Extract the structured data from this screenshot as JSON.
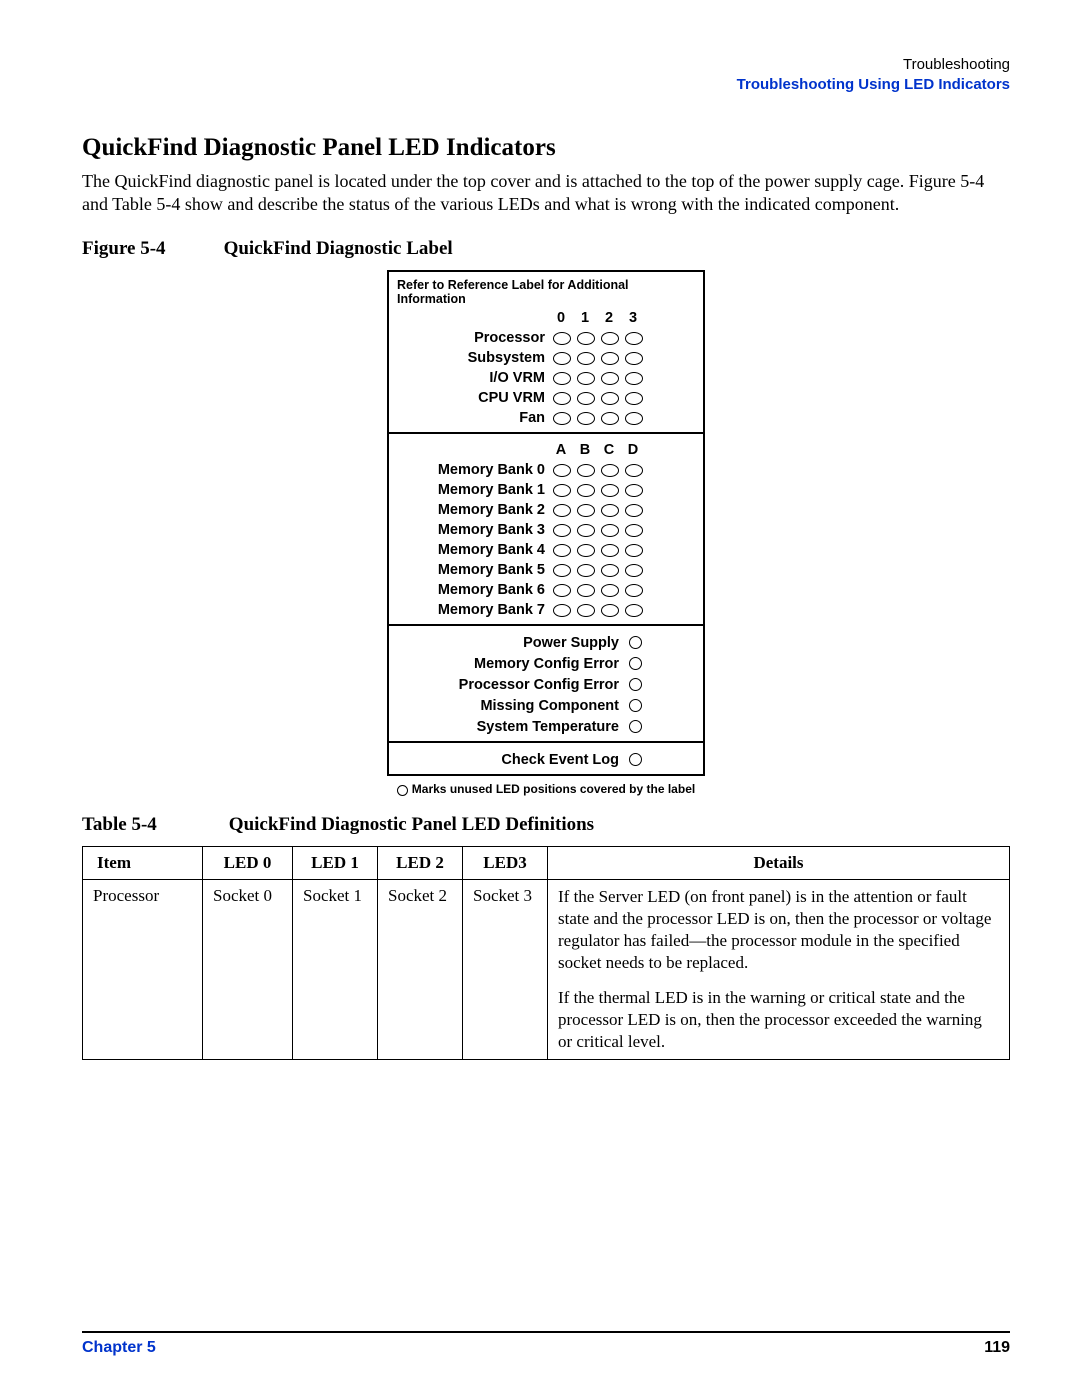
{
  "header": {
    "section": "Troubleshooting",
    "subsection": "Troubleshooting Using LED Indicators"
  },
  "section_title": "QuickFind Diagnostic Panel LED Indicators",
  "body_text": "The QuickFind diagnostic panel is located under the top cover and is attached to the top of the power supply cage. Figure 5-4 and Table 5-4 show and describe the status of the various LEDs and what is wrong with the indicated component.",
  "figure": {
    "label": "Figure 5-4",
    "title": "QuickFind Diagnostic Label"
  },
  "diagram": {
    "note": "Refer to Reference Label for Additional Information",
    "cols_num": [
      "0",
      "1",
      "2",
      "3"
    ],
    "cols_alpha": [
      "A",
      "B",
      "C",
      "D"
    ],
    "group1": [
      "Processor",
      "Subsystem",
      "I/O VRM",
      "CPU VRM",
      "Fan"
    ],
    "group2": [
      "Memory Bank 0",
      "Memory Bank 1",
      "Memory Bank 2",
      "Memory Bank 3",
      "Memory Bank 4",
      "Memory Bank 5",
      "Memory Bank 6",
      "Memory Bank 7"
    ],
    "group3": [
      "Power Supply",
      "Memory Config Error",
      "Processor Config Error",
      "Missing Component",
      "System Temperature"
    ],
    "group4": [
      "Check Event Log"
    ],
    "footnote": "Marks unused LED positions covered by the label"
  },
  "table_caption": {
    "label": "Table 5-4",
    "title": "QuickFind Diagnostic Panel LED Definitions"
  },
  "defs_table": {
    "headers": [
      "Item",
      "LED 0",
      "LED 1",
      "LED 2",
      "LED3",
      "Details"
    ],
    "row": {
      "item": "Processor",
      "led0": "Socket 0",
      "led1": "Socket 1",
      "led2": "Socket 2",
      "led3": "Socket 3",
      "details_p1": "If the Server LED (on front panel) is in the attention or fault state and the processor LED is on, then the processor or voltage regulator has failed—the processor module in the specified socket needs to be replaced.",
      "details_p2": "If the thermal LED is in the warning or critical state and the processor LED is on, then the processor exceeded the warning or critical level."
    }
  },
  "footer": {
    "chapter": "Chapter 5",
    "page": "119"
  },
  "colors": {
    "link_blue": "#0033cc",
    "text": "#000000",
    "background": "#ffffff"
  }
}
